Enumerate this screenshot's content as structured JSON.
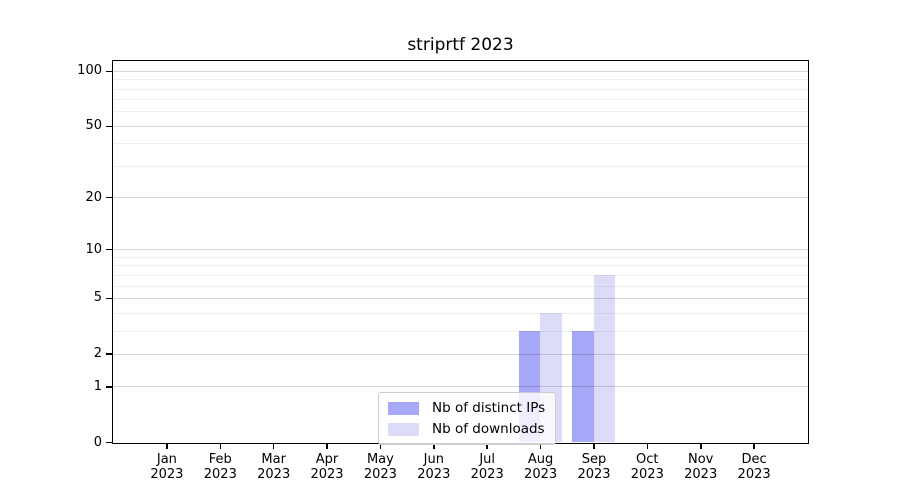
{
  "chart_data": {
    "type": "bar",
    "title": "striprtf 2023",
    "categories": [
      "Jan 2023",
      "Feb 2023",
      "Mar 2023",
      "Apr 2023",
      "May 2023",
      "Jun 2023",
      "Jul 2023",
      "Aug 2023",
      "Sep 2023",
      "Oct 2023",
      "Nov 2023",
      "Dec 2023"
    ],
    "series": [
      {
        "name": "Nb of distinct IPs",
        "color": "#a8a8f8",
        "values": [
          0,
          0,
          0,
          0,
          0,
          0,
          0,
          3,
          3,
          0,
          0,
          0
        ]
      },
      {
        "name": "Nb of downloads",
        "color": "#dcdcf9",
        "values": [
          0,
          0,
          0,
          0,
          0,
          0,
          0,
          4,
          7,
          0,
          0,
          0
        ]
      }
    ],
    "yscale": "log1p",
    "ylim": [
      0,
      113
    ],
    "yticks": [
      100,
      50,
      20,
      10,
      5,
      2,
      1,
      0
    ],
    "minor_gridlines": [
      3,
      4,
      6,
      7,
      8,
      9,
      30,
      40,
      60,
      70,
      80,
      90
    ],
    "grid": true,
    "legend_position": "lower center",
    "colors": {
      "axis": "#000000",
      "grid_major": "#d6d6d6",
      "grid_minor": "#eeeeee",
      "legend_border": "#cccccc",
      "background": "#ffffff"
    }
  }
}
